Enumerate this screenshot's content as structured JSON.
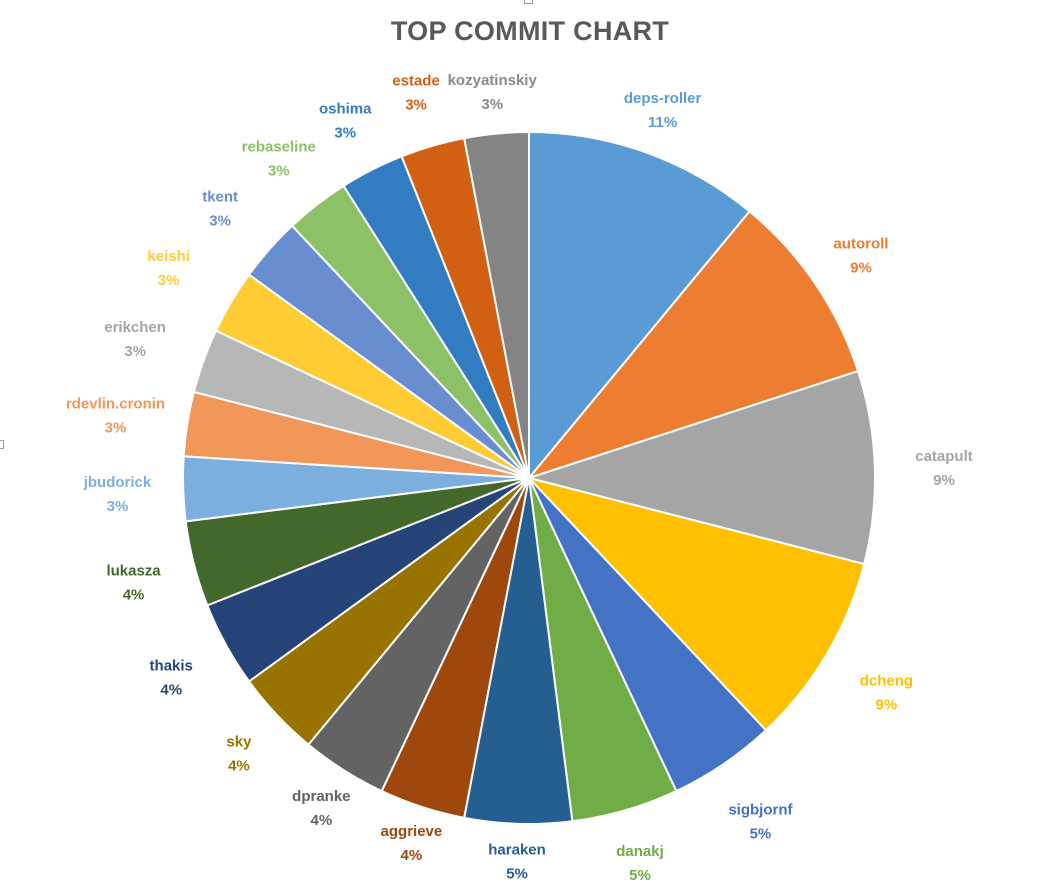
{
  "chart_data": {
    "type": "pie",
    "title": "TOP COMMIT CHART",
    "slices": [
      {
        "label": "deps-roller",
        "value": 11,
        "pct_label": "11%",
        "color": "#5B9BD5"
      },
      {
        "label": "autoroll",
        "value": 9,
        "pct_label": "9%",
        "color": "#ED7D31"
      },
      {
        "label": "catapult",
        "value": 9,
        "pct_label": "9%",
        "color": "#A5A5A5"
      },
      {
        "label": "dcheng",
        "value": 9,
        "pct_label": "9%",
        "color": "#FFC000"
      },
      {
        "label": "sigbjornf",
        "value": 5,
        "pct_label": "5%",
        "color": "#4472C4"
      },
      {
        "label": "danakj",
        "value": 5,
        "pct_label": "5%",
        "color": "#70AD47"
      },
      {
        "label": "haraken",
        "value": 5,
        "pct_label": "5%",
        "color": "#255E91"
      },
      {
        "label": "aggrieve",
        "value": 4,
        "pct_label": "4%",
        "color": "#9E480E"
      },
      {
        "label": "dpranke",
        "value": 4,
        "pct_label": "4%",
        "color": "#636363"
      },
      {
        "label": "sky",
        "value": 4,
        "pct_label": "4%",
        "color": "#997300"
      },
      {
        "label": "thakis",
        "value": 4,
        "pct_label": "4%",
        "color": "#264478"
      },
      {
        "label": "lukasza",
        "value": 4,
        "pct_label": "4%",
        "color": "#43682B"
      },
      {
        "label": "jbudorick",
        "value": 3,
        "pct_label": "3%",
        "color": "#7CAFDD"
      },
      {
        "label": "rdevlin.cronin",
        "value": 3,
        "pct_label": "3%",
        "color": "#F1975A"
      },
      {
        "label": "erikchen",
        "value": 3,
        "pct_label": "3%",
        "color": "#B7B7B7"
      },
      {
        "label": "keishi",
        "value": 3,
        "pct_label": "3%",
        "color": "#FFCD33"
      },
      {
        "label": "tkent",
        "value": 3,
        "pct_label": "3%",
        "color": "#698ED0"
      },
      {
        "label": "rebaseline",
        "value": 3,
        "pct_label": "3%",
        "color": "#8CC168"
      },
      {
        "label": "oshima",
        "value": 3,
        "pct_label": "3%",
        "color": "#327DC2"
      },
      {
        "label": "estade",
        "value": 3,
        "pct_label": "3%",
        "color": "#D26012"
      },
      {
        "label": "kozyatinskiy",
        "value": 3,
        "pct_label": "3%",
        "color": "#848484"
      }
    ]
  }
}
